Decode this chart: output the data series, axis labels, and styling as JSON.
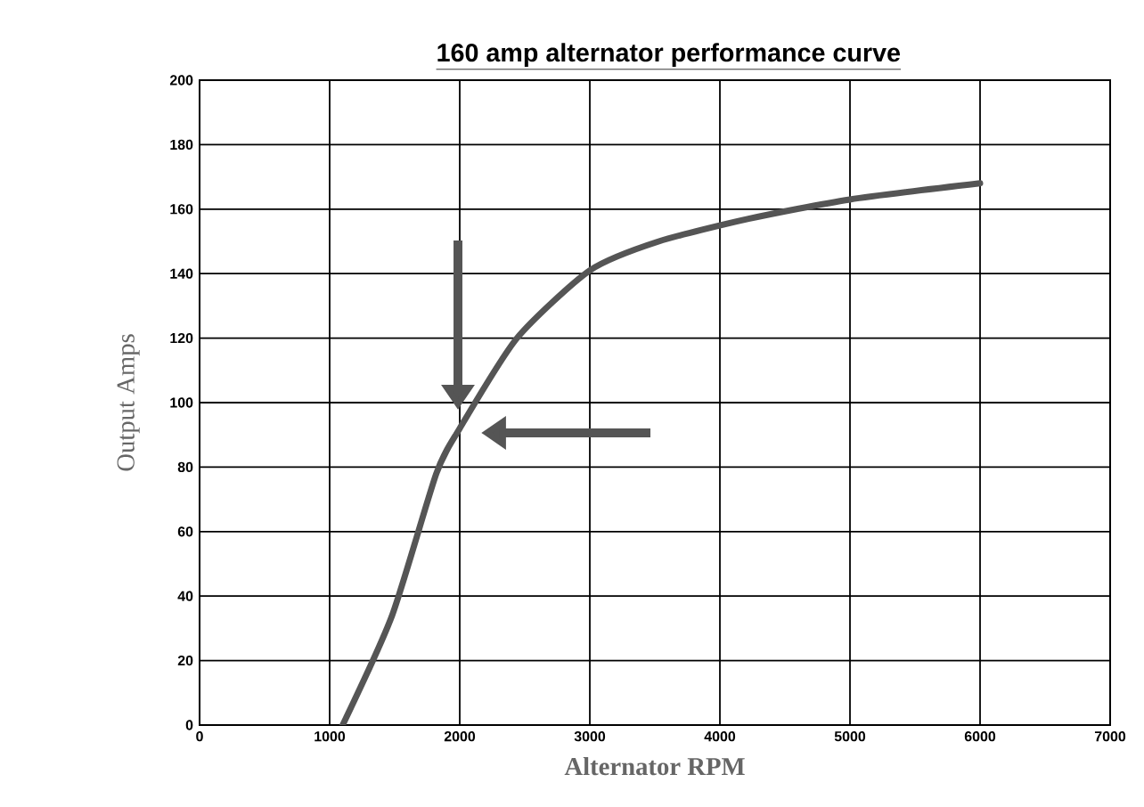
{
  "chart_data": {
    "type": "line",
    "title": "160 amp alternator performance curve",
    "xlabel": "Alternator RPM",
    "ylabel": "Output Amps",
    "x": [
      1100,
      1480,
      1820,
      2000,
      2440,
      3000,
      3530,
      4220,
      5000,
      6000
    ],
    "series": [
      {
        "color": "#555555",
        "values": [
          0,
          34,
          78,
          92,
          120,
          141,
          150,
          157,
          163,
          168
        ]
      }
    ],
    "xlim": [
      0,
      7000
    ],
    "ylim": [
      0,
      200
    ],
    "xticks": [
      0,
      1000,
      2000,
      3000,
      4000,
      5000,
      6000,
      7000
    ],
    "yticks": [
      0,
      20,
      40,
      60,
      80,
      100,
      120,
      140,
      160,
      180,
      200
    ],
    "grid": true,
    "marker": "none",
    "line_style": "solid"
  }
}
